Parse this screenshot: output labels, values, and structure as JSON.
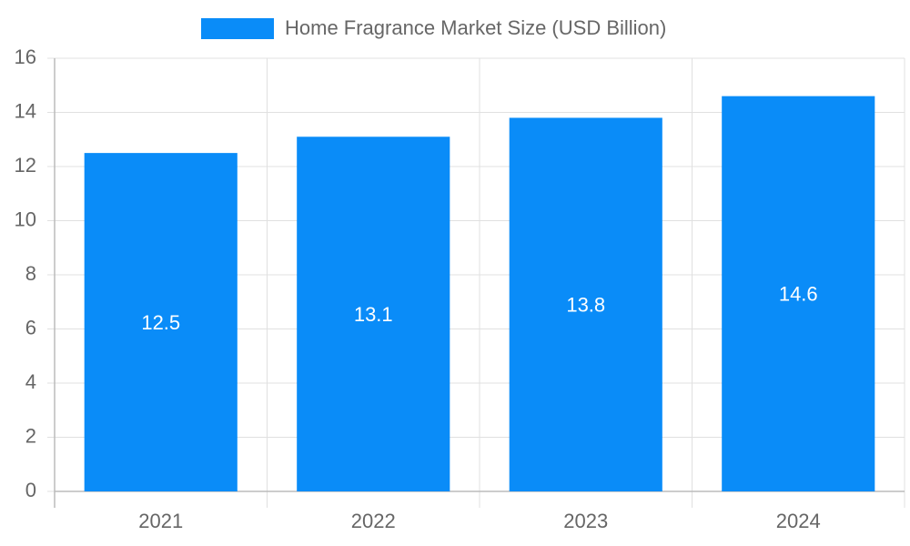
{
  "chart_data": {
    "type": "bar",
    "categories": [
      "2021",
      "2022",
      "2023",
      "2024"
    ],
    "series": [
      {
        "name": "Home Fragrance Market Size (USD Billion)",
        "color": "#0a8cf8",
        "values": [
          12.5,
          13.1,
          13.8,
          14.6
        ]
      }
    ],
    "ylim": [
      0,
      16
    ],
    "yticks": [
      0,
      2,
      4,
      6,
      8,
      10,
      12,
      14,
      16
    ],
    "grid": true,
    "legend": "top"
  }
}
